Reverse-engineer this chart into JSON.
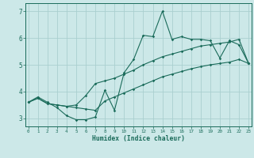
{
  "xlabel": "Humidex (Indice chaleur)",
  "background_color": "#cce8e8",
  "line_color": "#1a6b5a",
  "grid_color": "#aacfcf",
  "x_values": [
    0,
    1,
    2,
    3,
    4,
    5,
    6,
    7,
    8,
    9,
    10,
    11,
    12,
    13,
    14,
    15,
    16,
    17,
    18,
    19,
    20,
    21,
    22,
    23
  ],
  "y_main": [
    3.6,
    3.8,
    3.6,
    3.4,
    3.1,
    2.95,
    2.95,
    3.05,
    4.05,
    3.3,
    4.7,
    5.2,
    6.1,
    6.05,
    7.0,
    5.95,
    6.05,
    5.95,
    5.95,
    5.9,
    5.25,
    5.9,
    5.75,
    5.05
  ],
  "y_upper": [
    3.6,
    3.75,
    3.55,
    3.5,
    3.45,
    3.5,
    3.85,
    4.3,
    4.4,
    4.5,
    4.65,
    4.8,
    5.0,
    5.15,
    5.3,
    5.4,
    5.5,
    5.6,
    5.7,
    5.75,
    5.8,
    5.85,
    5.95,
    5.05
  ],
  "y_lower": [
    3.6,
    3.75,
    3.55,
    3.5,
    3.45,
    3.4,
    3.35,
    3.3,
    3.65,
    3.8,
    3.95,
    4.1,
    4.25,
    4.4,
    4.55,
    4.65,
    4.75,
    4.85,
    4.93,
    5.0,
    5.05,
    5.1,
    5.2,
    5.05
  ],
  "xlim": [
    0,
    23
  ],
  "ylim": [
    2.7,
    7.3
  ],
  "yticks": [
    3,
    4,
    5,
    6,
    7
  ],
  "xticks": [
    0,
    1,
    2,
    3,
    4,
    5,
    6,
    7,
    8,
    9,
    10,
    11,
    12,
    13,
    14,
    15,
    16,
    17,
    18,
    19,
    20,
    21,
    22,
    23
  ]
}
